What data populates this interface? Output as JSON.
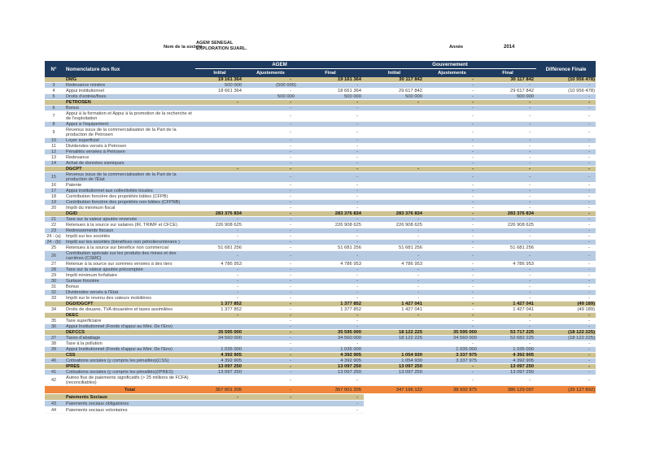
{
  "meta": {
    "company_label": "Nom de la société",
    "company_name_line1": "AGEM SENEGAL",
    "company_name_line2": "EXPLORATION SUARL.",
    "year_label": "Année",
    "year_value": "2014"
  },
  "colors": {
    "header_navy": "#1e3a5e",
    "section_tan": "#cdc291",
    "row_blue": "#b7cbe3",
    "total_orange": "#f0873c"
  },
  "table": {
    "header": {
      "num": "N°",
      "flux": "Nomenclature des flux",
      "group_agem": "AGEM",
      "group_gouv": "Gouvernement",
      "diff": "Différence Finale",
      "sub": [
        "Initial",
        "Ajustements",
        "Final",
        "Initial",
        "Ajustements",
        "Final"
      ]
    },
    "rows": [
      {
        "t": "sec",
        "num": "",
        "label": "DMG",
        "v": [
          "19 161 364",
          "-",
          "19 161 364",
          "30 117 842",
          "-",
          "30 117 842",
          "(10 956 478)"
        ]
      },
      {
        "t": "d",
        "s": "b",
        "num": "3",
        "label": "Redevance minière",
        "v": [
          "500 000",
          "(500 000)",
          "-",
          "",
          "-",
          "-",
          "-"
        ]
      },
      {
        "t": "d",
        "s": "w",
        "num": "4",
        "label": "Appui institutionnel",
        "v": [
          "18 661 364",
          "-",
          "18 661 364",
          "29 617 842",
          "-",
          "29 617 842",
          "(10 956 478)"
        ]
      },
      {
        "t": "d",
        "s": "b",
        "num": "5",
        "label": "Droits d'entrée/fixes",
        "v": [
          "",
          "500 000",
          "500 000",
          "500 000",
          "-",
          "500 000",
          "-"
        ]
      },
      {
        "t": "sec",
        "num": "",
        "label": "PETROSEN",
        "v": [
          "-",
          "-",
          "-",
          "-",
          "-",
          "-",
          "-"
        ]
      },
      {
        "t": "d",
        "s": "b",
        "num": "6",
        "label": "Bonus",
        "v": [
          "",
          "-",
          "-",
          "",
          "-",
          "-",
          "-"
        ]
      },
      {
        "t": "d",
        "s": "w",
        "num": "7",
        "label": "Appui à la formation et Appui à la promotion de la recherche et de l'exploitation",
        "v": [
          "",
          "-",
          "-",
          "",
          "-",
          "-",
          "-"
        ]
      },
      {
        "t": "d",
        "s": "b",
        "num": "8",
        "label": "Appui à l'équipement",
        "v": [
          "",
          "-",
          "-",
          "",
          "-",
          "-",
          "-"
        ]
      },
      {
        "t": "d",
        "s": "w",
        "num": "9",
        "label": "Revenus issus de la commercialisation de la Part de la production de Petrosen",
        "v": [
          "",
          "-",
          "-",
          "",
          "-",
          "-",
          "-"
        ]
      },
      {
        "t": "d",
        "s": "b",
        "num": "10",
        "label": "Loyer superficiel",
        "v": [
          "",
          "-",
          "-",
          "",
          "-",
          "-",
          "-"
        ]
      },
      {
        "t": "d",
        "s": "w",
        "num": "11",
        "label": "Dividendes versés à Petrosen",
        "v": [
          "",
          "-",
          "-",
          "",
          "-",
          "-",
          "-"
        ]
      },
      {
        "t": "d",
        "s": "b",
        "num": "12",
        "label": "Pénalités versées à Petrosen",
        "v": [
          "",
          "-",
          "-",
          "",
          "-",
          "-",
          "-"
        ]
      },
      {
        "t": "d",
        "s": "w",
        "num": "13",
        "label": "Redevance",
        "v": [
          "",
          "-",
          "-",
          "",
          "-",
          "-",
          "-"
        ]
      },
      {
        "t": "d",
        "s": "b",
        "num": "14",
        "label": "Achat de données sismiques",
        "v": [
          "",
          "-",
          "-",
          "",
          "-",
          "-",
          "-"
        ]
      },
      {
        "t": "sec",
        "num": "",
        "label": "DGCPT",
        "v": [
          "-",
          "-",
          "-",
          "-",
          "-",
          "-",
          "-"
        ]
      },
      {
        "t": "d",
        "s": "b",
        "num": "15",
        "label": "Revenus issus de la commercialisation de la Part de la production de l'État",
        "v": [
          "",
          "-",
          "-",
          "",
          "-",
          "-",
          "-"
        ]
      },
      {
        "t": "d",
        "s": "w",
        "num": "16",
        "label": "Patente",
        "v": [
          "",
          "-",
          "-",
          "",
          "-",
          "-",
          "-"
        ]
      },
      {
        "t": "d",
        "s": "b",
        "num": "17",
        "label": "Appui institutionnel aux collectivités locales",
        "v": [
          "",
          "-",
          "-",
          "",
          "-",
          "-",
          "-"
        ]
      },
      {
        "t": "d",
        "s": "w",
        "num": "18",
        "label": "Contribution foncière des propriétés bâties (CFPB)",
        "v": [
          "",
          "-",
          "-",
          "",
          "-",
          "-",
          "-"
        ]
      },
      {
        "t": "d",
        "s": "b",
        "num": "19",
        "label": "Contribution foncière des propriétés non bâties (CFPNB)",
        "v": [
          "",
          "-",
          "-",
          "",
          "-",
          "-",
          "-"
        ]
      },
      {
        "t": "d",
        "s": "w",
        "num": "20",
        "label": "Impôt du minimum fiscal",
        "v": [
          "",
          "-",
          "-",
          "",
          "-",
          "-",
          "-"
        ]
      },
      {
        "t": "sec",
        "num": "",
        "label": "DGID",
        "v": [
          "283 376 834",
          "-",
          "283 376 834",
          "283 376 834",
          "-",
          "283 376 834",
          "-"
        ]
      },
      {
        "t": "d",
        "s": "b",
        "num": "21",
        "label": "Taxe sur la valeur ajoutée reversée",
        "v": [
          "-",
          "-",
          "-",
          "-",
          "-",
          "-",
          "-"
        ]
      },
      {
        "t": "d",
        "s": "w",
        "num": "22",
        "label": "Retenues à la source sur salaires (IR, TRIMF et CFCE)",
        "v": [
          "226 908 625",
          "-",
          "226 908 625",
          "226 908 625",
          "-",
          "226 908 625",
          "-"
        ]
      },
      {
        "t": "d",
        "s": "b",
        "num": "23",
        "label": "Redressements fiscaux",
        "v": [
          "-",
          "-",
          "-",
          "-",
          "-",
          "-",
          "-"
        ]
      },
      {
        "t": "d",
        "s": "w",
        "num": "24 - (a)",
        "label": "Impôt sur les sociétés",
        "v": [
          "-",
          "-",
          "-",
          "-",
          "-",
          "-",
          "-"
        ]
      },
      {
        "t": "d",
        "s": "b",
        "num": "24 - (b)",
        "label": "Impôt sur les sociétés (bénéfices non pétroliers/miniers )",
        "v": [
          "-",
          "-",
          "-",
          "-",
          "-",
          "-",
          "-"
        ]
      },
      {
        "t": "d",
        "s": "w",
        "num": "25",
        "label": "Retenues à la source sur bénéfice non commercial",
        "v": [
          "51 681 256",
          "-",
          "51 681 256",
          "51 681 256",
          "-",
          "51 681 256",
          "-"
        ]
      },
      {
        "t": "d",
        "s": "b",
        "num": "26",
        "label": "Contribution spéciale sur les produits des mines et des carrières (CSMC)",
        "v": [
          "-",
          "-",
          "-",
          "-",
          "-",
          "-",
          "-"
        ]
      },
      {
        "t": "d",
        "s": "w",
        "num": "27",
        "label": "Retenue à la source sur sommes versées à des tiers",
        "v": [
          "4 786 953",
          "-",
          "4 786 953",
          "4 786 953",
          "-",
          "4 786 953",
          "-"
        ]
      },
      {
        "t": "d",
        "s": "b",
        "num": "28",
        "label": "Taxe sur la valeur ajoutée précomptée",
        "v": [
          "-",
          "-",
          "-",
          "-",
          "-",
          "-",
          "-"
        ]
      },
      {
        "t": "d",
        "s": "w",
        "num": "29",
        "label": "Impôt minimum forfaitaire",
        "v": [
          "-",
          "-",
          "-",
          "-",
          "-",
          "-",
          "-"
        ]
      },
      {
        "t": "d",
        "s": "b",
        "num": "30",
        "label": "Surtaxe foncière",
        "v": [
          "-",
          "-",
          "-",
          "-",
          "-",
          "-",
          "-"
        ]
      },
      {
        "t": "d",
        "s": "w",
        "num": "31",
        "label": "Bonus",
        "v": [
          "-",
          "-",
          "-",
          "-",
          "-",
          "-",
          "-"
        ]
      },
      {
        "t": "d",
        "s": "b",
        "num": "32",
        "label": "Dividendes versés à l'Etat",
        "v": [
          "-",
          "-",
          "-",
          "-",
          "-",
          "-",
          "-"
        ]
      },
      {
        "t": "d",
        "s": "w",
        "num": "33",
        "label": "Impôt sur le revenu des valeurs mobilières",
        "v": [
          "-",
          "-",
          "-",
          "-",
          "-",
          "-",
          "-"
        ]
      },
      {
        "t": "sec",
        "num": "",
        "label": "DGD/DGCPT",
        "v": [
          "1 377 852",
          "-",
          "1 377 852",
          "1 427 041",
          "-",
          "1 427 041",
          "(49 189)"
        ]
      },
      {
        "t": "d",
        "s": "w",
        "num": "34",
        "label": "Droits de douane, TVA douanière et taxes assimilées",
        "v": [
          "1 377 852",
          "-",
          "1 377 852",
          "1 427 041",
          "-",
          "1 427 041",
          "(49 189)"
        ]
      },
      {
        "t": "sec",
        "num": "",
        "label": "DEEC",
        "v": [
          "-",
          "-",
          "-",
          "-",
          "-",
          "-",
          "-"
        ]
      },
      {
        "t": "d",
        "s": "w",
        "num": "35",
        "label": "Taxe superficiaire",
        "v": [
          "",
          "-",
          "-",
          "",
          "-",
          "-",
          "-"
        ]
      },
      {
        "t": "d",
        "s": "b",
        "num": "36",
        "label": "Appui Institutionnel (Fonds d'appui au Mini. De l'Env)",
        "v": [
          "",
          "-",
          "-",
          "",
          "-",
          "-",
          "-"
        ]
      },
      {
        "t": "sec",
        "num": "",
        "label": "DEFCCS",
        "v": [
          "35 595 000",
          "-",
          "35 595 000",
          "18 122 225",
          "35 595 000",
          "53 717 225",
          "(18 122 225)"
        ]
      },
      {
        "t": "d",
        "s": "b",
        "num": "37",
        "label": "Taxes d'abattage",
        "v": [
          "34 560 000",
          "-",
          "34 560 000",
          "18 122 225",
          "34 560 000",
          "52 682 225",
          "(18 122 225)"
        ]
      },
      {
        "t": "d",
        "s": "w",
        "num": "38",
        "label": "Taxe à la pollution",
        "v": [
          "",
          "-",
          "-",
          "",
          "-",
          "-",
          "-"
        ]
      },
      {
        "t": "d",
        "s": "b",
        "num": "39",
        "label": "Appui Institutionnel (Fonds d'appui au Mini. De l'Env)",
        "v": [
          "1 035 000",
          "-",
          "1 035 000",
          "",
          "1 035 000",
          "1 035 000",
          "-"
        ]
      },
      {
        "t": "sec",
        "num": "",
        "label": "CSS",
        "v": [
          "4 392 905",
          "-",
          "4 392 905",
          "1 054 930",
          "3 337 975",
          "4 392 905",
          "-"
        ]
      },
      {
        "t": "d",
        "s": "b",
        "num": "40",
        "label": "Cotisations sociales (y compris les pénalités)(CSS)",
        "v": [
          "4 392 905",
          "-",
          "4 392 905",
          "1 054 930",
          "3 337 975",
          "4 392 905",
          "-"
        ]
      },
      {
        "t": "sec",
        "num": "",
        "label": "IPRES",
        "v": [
          "13 097 250",
          "-",
          "13 097 250",
          "13 097 250",
          "-",
          "13 097 250",
          "-"
        ]
      },
      {
        "t": "d",
        "s": "b",
        "num": "41",
        "label": "Cotisations sociales (y compris les pénalités)(IPRES)",
        "v": [
          "13 097 250",
          "-",
          "13 097 250",
          "13 097 250",
          "-",
          "13 097 250",
          "-"
        ]
      },
      {
        "t": "d",
        "s": "w",
        "num": "42",
        "label": "Autres flux de paiements significatifs (> 25 millions de  FCFA) (reconciliables)",
        "v": [
          "",
          "-",
          "-",
          "",
          "-",
          "-",
          "-"
        ]
      },
      {
        "t": "total",
        "num": "",
        "label": "Total",
        "v": [
          "357 001 205",
          "-",
          "357 001 205",
          "347 196 122",
          "38 932 975",
          "386 129 097",
          "(29 127 892)"
        ]
      },
      {
        "t": "secp",
        "num": "",
        "label": "Paiements Sociaux",
        "v": [
          "-",
          "-",
          "-",
          "",
          "",
          "",
          ""
        ]
      },
      {
        "t": "dp",
        "s": "b",
        "num": "43",
        "label": "Paiements sociaux obligatoires",
        "v": [
          "",
          "",
          "-",
          "",
          "",
          "",
          ""
        ]
      },
      {
        "t": "dp",
        "s": "w",
        "num": "44",
        "label": "Paiements sociaux volontaires",
        "v": [
          "",
          "",
          "-",
          "",
          "",
          "",
          ""
        ]
      }
    ]
  }
}
